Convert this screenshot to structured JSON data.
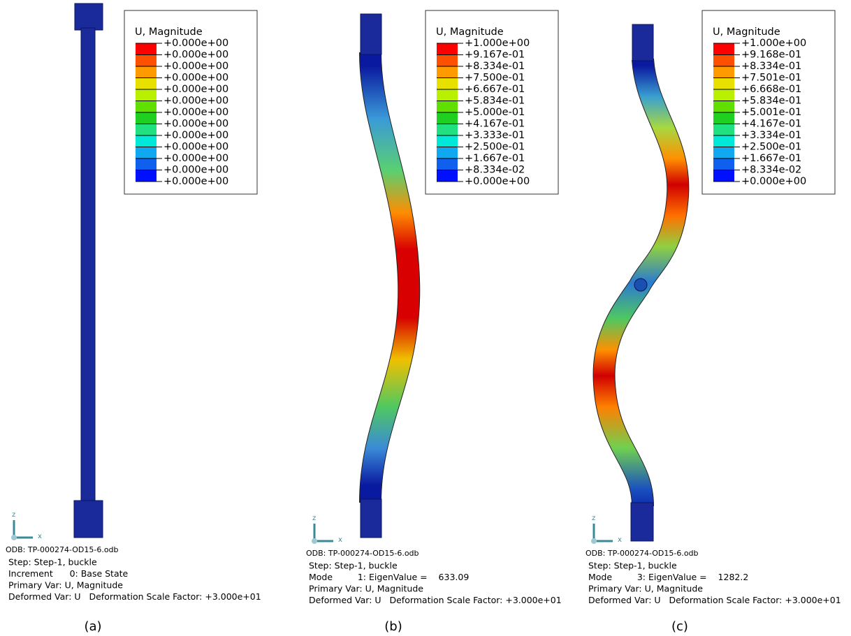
{
  "panels": [
    {
      "legend": {
        "title": "U, Magnitude",
        "labels": [
          "+0.000e+00",
          "+0.000e+00",
          "+0.000e+00",
          "+0.000e+00",
          "+0.000e+00",
          "+0.000e+00",
          "+0.000e+00",
          "+0.000e+00",
          "+0.000e+00",
          "+0.000e+00",
          "+0.000e+00",
          "+0.000e+00",
          "+0.000e+00"
        ]
      },
      "axes": {
        "z": "z",
        "x": "x"
      },
      "odb": "ODB: TP-000274-OD15-6.odb",
      "info": [
        "Step: Step-1, buckle",
        "Increment      0: Base State",
        "Primary Var: U, Magnitude",
        "Deformed Var: U   Deformation Scale Factor: +3.000e+01"
      ],
      "caption": "(a)"
    },
    {
      "legend": {
        "title": "U, Magnitude",
        "labels": [
          "+1.000e+00",
          "+9.167e-01",
          "+8.334e-01",
          "+7.500e-01",
          "+6.667e-01",
          "+5.834e-01",
          "+5.000e-01",
          "+4.167e-01",
          "+3.333e-01",
          "+2.500e-01",
          "+1.667e-01",
          "+8.334e-02",
          "+0.000e+00"
        ]
      },
      "axes": {
        "z": "z",
        "x": "x"
      },
      "odb": "ODB: TP-000274-OD15-6.odb",
      "info": [
        "Step: Step-1, buckle",
        "Mode         1: EigenValue =    633.09",
        "Primary Var: U, Magnitude",
        "Deformed Var: U   Deformation Scale Factor: +3.000e+01"
      ],
      "caption": "(b)"
    },
    {
      "legend": {
        "title": "U, Magnitude",
        "labels": [
          "+1.000e+00",
          "+9.168e-01",
          "+8.334e-01",
          "+7.501e-01",
          "+6.668e-01",
          "+5.834e-01",
          "+5.001e-01",
          "+4.167e-01",
          "+3.334e-01",
          "+2.500e-01",
          "+1.667e-01",
          "+8.334e-02",
          "+0.000e+00"
        ]
      },
      "axes": {
        "z": "z",
        "x": "x"
      },
      "odb": "ODB: TP-000274-OD15-6.odb",
      "info": [
        "Step: Step-1, buckle",
        "Mode         3: EigenValue =    1282.2",
        "Primary Var: U, Magnitude",
        "Deformed Var: U   Deformation Scale Factor: +3.000e+01"
      ],
      "caption": "(c)"
    }
  ]
}
